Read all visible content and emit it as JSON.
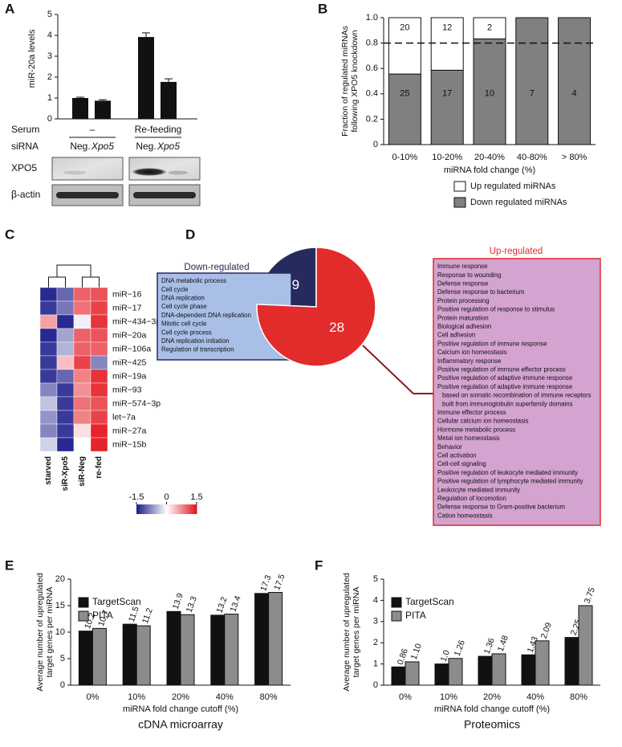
{
  "chart_data": [
    {
      "label": "A",
      "type": "bar",
      "ylabel": "miR-20a levels",
      "ylim": [
        0,
        5
      ],
      "yticks": [
        0,
        1,
        2,
        3,
        4,
        5
      ],
      "categories": [
        "Neg.",
        "Xpo5",
        "Neg.",
        "Xpo5"
      ],
      "values": [
        1.0,
        0.87,
        3.92,
        1.77
      ],
      "errors": [
        0.04,
        0.05,
        0.2,
        0.15
      ],
      "color": "#111111",
      "row_labels": [
        "Serum",
        "siRNA"
      ],
      "groups": [
        "–",
        "Re-feeding"
      ],
      "blots": [
        "XPO5",
        "β-actin"
      ]
    },
    {
      "label": "B",
      "type": "stacked_bar",
      "ylabel": [
        "Fraction of regulated miRNAs",
        "following XPO5 knockdown"
      ],
      "xlabel": "miRNA fold change (%)",
      "ylim": [
        0,
        1
      ],
      "yticks": [
        0,
        0.2,
        0.4,
        0.6,
        0.8,
        {
          "value": 1,
          "label": "1.0"
        }
      ],
      "reference_line": 0.8,
      "categories": [
        "0-10%",
        "10-20%",
        "20-40%",
        "40-80%",
        "> 80%"
      ],
      "series": [
        {
          "name": "Down regulated miRNAs",
          "color": "#808080",
          "values": [
            0.556,
            0.586,
            0.833,
            1,
            1
          ],
          "counts": [
            25,
            17,
            10,
            7,
            4
          ]
        },
        {
          "name": "Up regulated miRNAs",
          "color": "#ffffff",
          "values": [
            0.444,
            0.414,
            0.167,
            0,
            0
          ],
          "counts": [
            20,
            12,
            2,
            null,
            null
          ]
        }
      ]
    },
    {
      "label": "C",
      "type": "heatmap",
      "columns": [
        "starved",
        "siR-Xpo5",
        "siR-Neg",
        "re-fed"
      ],
      "rows": [
        "miR−16",
        "miR−17",
        "miR−434−3p",
        "miR−20a",
        "miR−106a",
        "miR−425",
        "miR−19a",
        "miR−93",
        "miR−574−3p",
        "let−7a",
        "miR−27a",
        "miR−15b"
      ],
      "values": [
        [
          -1.4,
          -1.0,
          1.0,
          1.1
        ],
        [
          -1.3,
          -0.9,
          0.9,
          1.2
        ],
        [
          0.6,
          -1.4,
          -0.1,
          1.3
        ],
        [
          -1.4,
          -0.6,
          1.0,
          1.1
        ],
        [
          -1.3,
          -0.5,
          1.0,
          1.0
        ],
        [
          -1.3,
          0.4,
          1.2,
          -0.8
        ],
        [
          -1.3,
          -1.0,
          0.8,
          1.3
        ],
        [
          -0.8,
          -1.3,
          0.7,
          1.3
        ],
        [
          -0.4,
          -1.3,
          0.9,
          1.1
        ],
        [
          -0.7,
          -1.3,
          0.8,
          1.2
        ],
        [
          -0.8,
          -1.3,
          0.2,
          1.4
        ],
        [
          -0.3,
          -1.4,
          0.0,
          1.4
        ]
      ],
      "zlim": [
        -1.5,
        1.5
      ],
      "zticks": [
        -1.5,
        0,
        1.5
      ],
      "colors": [
        "#1a1a8a",
        "#ffffff",
        "#e3141c"
      ]
    },
    {
      "label": "D",
      "type": "pie",
      "categories": [
        "Down-regulated",
        "Up-regulated"
      ],
      "values": [
        9,
        28
      ],
      "colors": [
        "#272a5c",
        "#e22b2b"
      ],
      "terms": [
        [
          "DNA metabolic process",
          "Cell cycle",
          "DNA replication",
          "Cell cycle phase",
          "DNA-dependent DNA replication",
          "Mitotic cell cycle",
          "Cell cycle process",
          "DNA replication initiation",
          "Regulation of transcription"
        ],
        [
          "Immune response",
          "Response to wounding",
          "Defense response",
          "Defense response to bacterium",
          "Protein processing",
          "Positive regulation of response to stimulus",
          "Protein maturation",
          "Biological adhesion",
          "Cell adhesion",
          "Positive regulation of immune response",
          "Calcium ion homeostasis",
          "Inflammatory response",
          "Positive regulation of immune effector process",
          "Positive regulation of adaptive immune response",
          "Positive regulation of adaptive immune response",
          "based on somatic recombination of immune receptors",
          "built from immunoglobulin superfamily domains",
          "Immune effector process",
          "Cellular calcium ion homeostasis",
          "Hormone metabolic process",
          "Metal ion homeostasis",
          "Behavior",
          "Cell activation",
          "Cell-cell signaling",
          "Positive regulation of leukocyte mediated immunity",
          "Positive regulation of lymphocyte mediated immunity",
          "Leukocyte mediated immunity",
          "Regulation of locomotion",
          "Defense response to Gram-positive bacterium",
          "Cation homeostasis"
        ]
      ]
    },
    {
      "label": "E",
      "type": "grouped_bar",
      "title": "cDNA microarray",
      "ylabel": [
        "Average number of upregulated",
        "target genes per miRNA"
      ],
      "xlabel": "miRNA fold change cutoff (%)",
      "categories": [
        "0%",
        "10%",
        "20%",
        "40%",
        "80%"
      ],
      "ylim": [
        0,
        20
      ],
      "yticks": [
        0,
        5,
        10,
        15,
        20
      ],
      "series": [
        {
          "name": "TargetScan",
          "color": "#111111",
          "values": [
            10.2,
            11.5,
            13.9,
            13.2,
            17.3
          ]
        },
        {
          "name": "PITA",
          "color": "#8c8c8c",
          "values": [
            10.7,
            11.2,
            13.3,
            13.4,
            17.5
          ]
        }
      ]
    },
    {
      "label": "F",
      "type": "grouped_bar",
      "title": "Proteomics",
      "ylabel": [
        "Average number of upregulated",
        "target genes per miRNA"
      ],
      "xlabel": "miRNA fold change cutoff (%)",
      "categories": [
        "0%",
        "10%",
        "20%",
        "40%",
        "80%"
      ],
      "ylim": [
        0,
        5
      ],
      "yticks": [
        0,
        1,
        2,
        3,
        4,
        5
      ],
      "series": [
        {
          "name": "TargetScan",
          "color": "#111111",
          "values": [
            0.86,
            1.0,
            1.36,
            1.43,
            2.25
          ],
          "value_labels": [
            "0.86",
            "1.0",
            "1.36",
            "1.43",
            "2.25"
          ]
        },
        {
          "name": "PITA",
          "color": "#8c8c8c",
          "values": [
            1.1,
            1.26,
            1.48,
            2.09,
            3.75
          ],
          "value_labels": [
            "1.10",
            "1.26",
            "1.48",
            "2.09",
            "3.75"
          ]
        }
      ]
    }
  ]
}
